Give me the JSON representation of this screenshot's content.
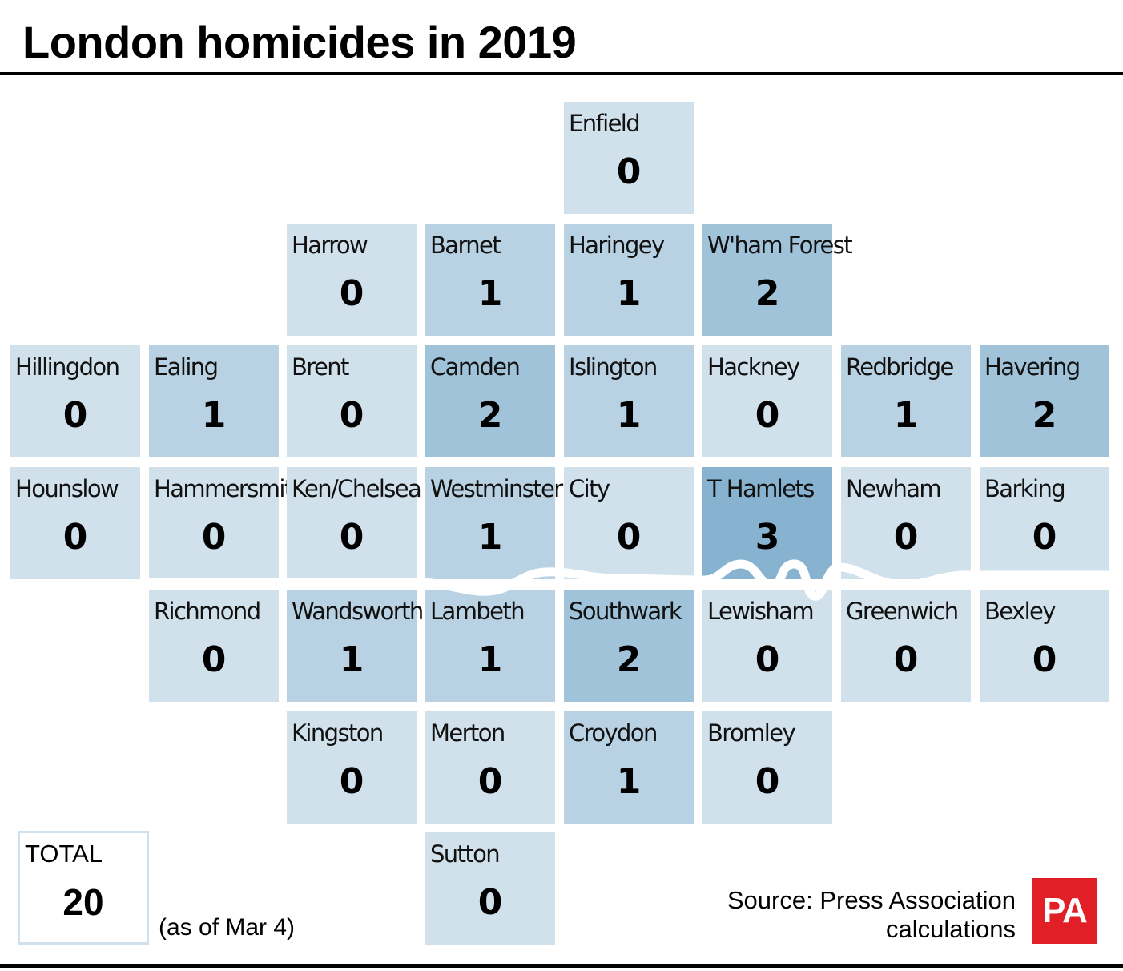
{
  "title": "London homicides in 2019",
  "colors": {
    "level_0": "#d1e1ec",
    "level_1": "#b9d2e3",
    "level_2": "#a0c3da",
    "level_3": "#87b3d0",
    "river": "#ffffff",
    "logo": "#e11f26",
    "rule": "#000000"
  },
  "boroughs": [
    {
      "name": "Enfield",
      "count": 0,
      "row": 0,
      "col": 4
    },
    {
      "name": "Harrow",
      "count": 0,
      "row": 1,
      "col": 2
    },
    {
      "name": "Barnet",
      "count": 1,
      "row": 1,
      "col": 3
    },
    {
      "name": "Haringey",
      "count": 1,
      "row": 1,
      "col": 4
    },
    {
      "name": "W'ham Forest",
      "count": 2,
      "row": 1,
      "col": 5
    },
    {
      "name": "Hillingdon",
      "count": 0,
      "row": 2,
      "col": 0
    },
    {
      "name": "Ealing",
      "count": 1,
      "row": 2,
      "col": 1
    },
    {
      "name": "Brent",
      "count": 0,
      "row": 2,
      "col": 2
    },
    {
      "name": "Camden",
      "count": 2,
      "row": 2,
      "col": 3
    },
    {
      "name": "Islington",
      "count": 1,
      "row": 2,
      "col": 4
    },
    {
      "name": "Hackney",
      "count": 0,
      "row": 2,
      "col": 5
    },
    {
      "name": "Redbridge",
      "count": 1,
      "row": 2,
      "col": 6
    },
    {
      "name": "Havering",
      "count": 2,
      "row": 2,
      "col": 7
    },
    {
      "name": "Hounslow",
      "count": 0,
      "row": 3,
      "col": 0
    },
    {
      "name": "Hammersmith",
      "count": 0,
      "row": 3,
      "col": 1
    },
    {
      "name": "Ken/Chelsea",
      "count": 0,
      "row": 3,
      "col": 2
    },
    {
      "name": "Westminster",
      "count": 1,
      "row": 3,
      "col": 3
    },
    {
      "name": "City",
      "count": 0,
      "row": 3,
      "col": 4
    },
    {
      "name": "T Hamlets",
      "count": 3,
      "row": 3,
      "col": 5
    },
    {
      "name": "Newham",
      "count": 0,
      "row": 3,
      "col": 6
    },
    {
      "name": "Barking",
      "count": 0,
      "row": 3,
      "col": 7
    },
    {
      "name": "Richmond",
      "count": 0,
      "row": 4,
      "col": 1
    },
    {
      "name": "Wandsworth",
      "count": 1,
      "row": 4,
      "col": 2
    },
    {
      "name": "Lambeth",
      "count": 1,
      "row": 4,
      "col": 3
    },
    {
      "name": "Southwark",
      "count": 2,
      "row": 4,
      "col": 4
    },
    {
      "name": "Lewisham",
      "count": 0,
      "row": 4,
      "col": 5
    },
    {
      "name": "Greenwich",
      "count": 0,
      "row": 4,
      "col": 6
    },
    {
      "name": "Bexley",
      "count": 0,
      "row": 4,
      "col": 7
    },
    {
      "name": "Kingston",
      "count": 0,
      "row": 5,
      "col": 2
    },
    {
      "name": "Merton",
      "count": 0,
      "row": 5,
      "col": 3
    },
    {
      "name": "Croydon",
      "count": 1,
      "row": 5,
      "col": 4
    },
    {
      "name": "Bromley",
      "count": 0,
      "row": 5,
      "col": 5
    },
    {
      "name": "Sutton",
      "count": 0,
      "row": 6,
      "col": 3
    }
  ],
  "total": {
    "label": "TOTAL",
    "value": "20"
  },
  "as_of": "(as of Mar 4)",
  "source": {
    "line1": "Source: Press Association",
    "line2": "calculations"
  },
  "logo": {
    "text": "PA"
  }
}
